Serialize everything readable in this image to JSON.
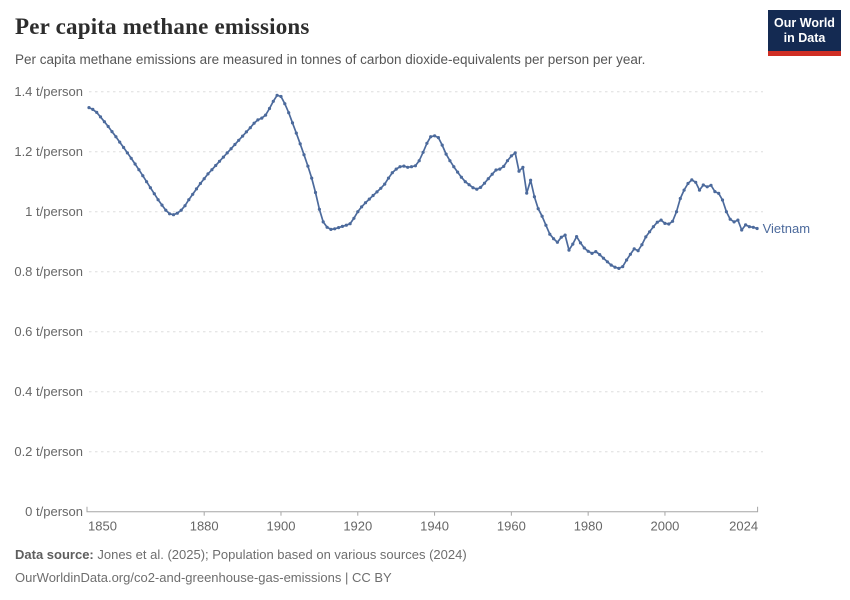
{
  "header": {
    "title": "Per capita methane emissions",
    "subtitle": "Per capita methane emissions are measured in tonnes of carbon dioxide-equivalents per person per year.",
    "logo": {
      "line1": "Our World",
      "line2": "in Data"
    }
  },
  "colors": {
    "series_blue": "#4c6a9c",
    "logo_navy": "#142a52",
    "logo_red": "#cf2e24",
    "gridline": "#dedede",
    "axis": "#a5a5a5",
    "tick_text": "#676767"
  },
  "chart_data": {
    "type": "line",
    "title": "Per capita methane emissions",
    "unit_suffix": " t/person",
    "xlim": [
      1850,
      2024
    ],
    "ylim": [
      0,
      1.4
    ],
    "x_ticks": [
      1850,
      1880,
      1900,
      1920,
      1940,
      1960,
      1980,
      2000,
      2024
    ],
    "y_ticks": [
      0,
      0.2,
      0.4,
      0.6,
      0.8,
      1,
      1.2,
      1.4
    ],
    "grid": "horizontal-dashed",
    "legend": "end-of-line-label",
    "series": [
      {
        "name": "Vietnam",
        "color": "#4c6a9c",
        "x_start": 1850,
        "x_step": 1,
        "values": [
          1.347,
          1.341,
          1.331,
          1.316,
          1.3,
          1.284,
          1.267,
          1.25,
          1.232,
          1.214,
          1.196,
          1.178,
          1.159,
          1.14,
          1.12,
          1.1,
          1.08,
          1.06,
          1.04,
          1.022,
          1.005,
          0.993,
          0.99,
          0.995,
          1.005,
          1.02,
          1.04,
          1.058,
          1.076,
          1.094,
          1.11,
          1.126,
          1.14,
          1.154,
          1.168,
          1.182,
          1.196,
          1.21,
          1.224,
          1.238,
          1.252,
          1.266,
          1.28,
          1.295,
          1.306,
          1.312,
          1.322,
          1.344,
          1.368,
          1.388,
          1.384,
          1.36,
          1.33,
          1.296,
          1.262,
          1.226,
          1.19,
          1.152,
          1.112,
          1.064,
          1.008,
          0.966,
          0.948,
          0.941,
          0.943,
          0.947,
          0.951,
          0.955,
          0.96,
          0.978,
          1.0,
          1.016,
          1.03,
          1.042,
          1.054,
          1.066,
          1.078,
          1.092,
          1.112,
          1.13,
          1.142,
          1.15,
          1.152,
          1.148,
          1.15,
          1.153,
          1.17,
          1.198,
          1.228,
          1.25,
          1.253,
          1.247,
          1.222,
          1.192,
          1.17,
          1.15,
          1.132,
          1.115,
          1.1,
          1.09,
          1.08,
          1.075,
          1.081,
          1.095,
          1.11,
          1.125,
          1.139,
          1.142,
          1.151,
          1.17,
          1.186,
          1.196,
          1.135,
          1.148,
          1.062,
          1.105,
          1.05,
          1.01,
          0.985,
          0.955,
          0.925,
          0.91,
          0.898,
          0.915,
          0.922,
          0.872,
          0.892,
          0.917,
          0.896,
          0.879,
          0.868,
          0.861,
          0.867,
          0.857,
          0.845,
          0.833,
          0.822,
          0.815,
          0.811,
          0.817,
          0.839,
          0.858,
          0.876,
          0.87,
          0.89,
          0.916,
          0.933,
          0.95,
          0.965,
          0.972,
          0.961,
          0.959,
          0.968,
          1.0,
          1.044,
          1.072,
          1.094,
          1.106,
          1.098,
          1.072,
          1.089,
          1.083,
          1.088,
          1.067,
          1.061,
          1.039,
          1.0,
          0.975,
          0.966,
          0.972,
          0.939,
          0.956,
          0.95,
          0.948,
          0.944
        ]
      }
    ]
  },
  "footer": {
    "source_label": "Data source:",
    "source_text": " Jones et al. (2025); Population based on various sources (2024)",
    "license_text": "OurWorldinData.org/co2-and-greenhouse-gas-emissions | CC BY"
  }
}
